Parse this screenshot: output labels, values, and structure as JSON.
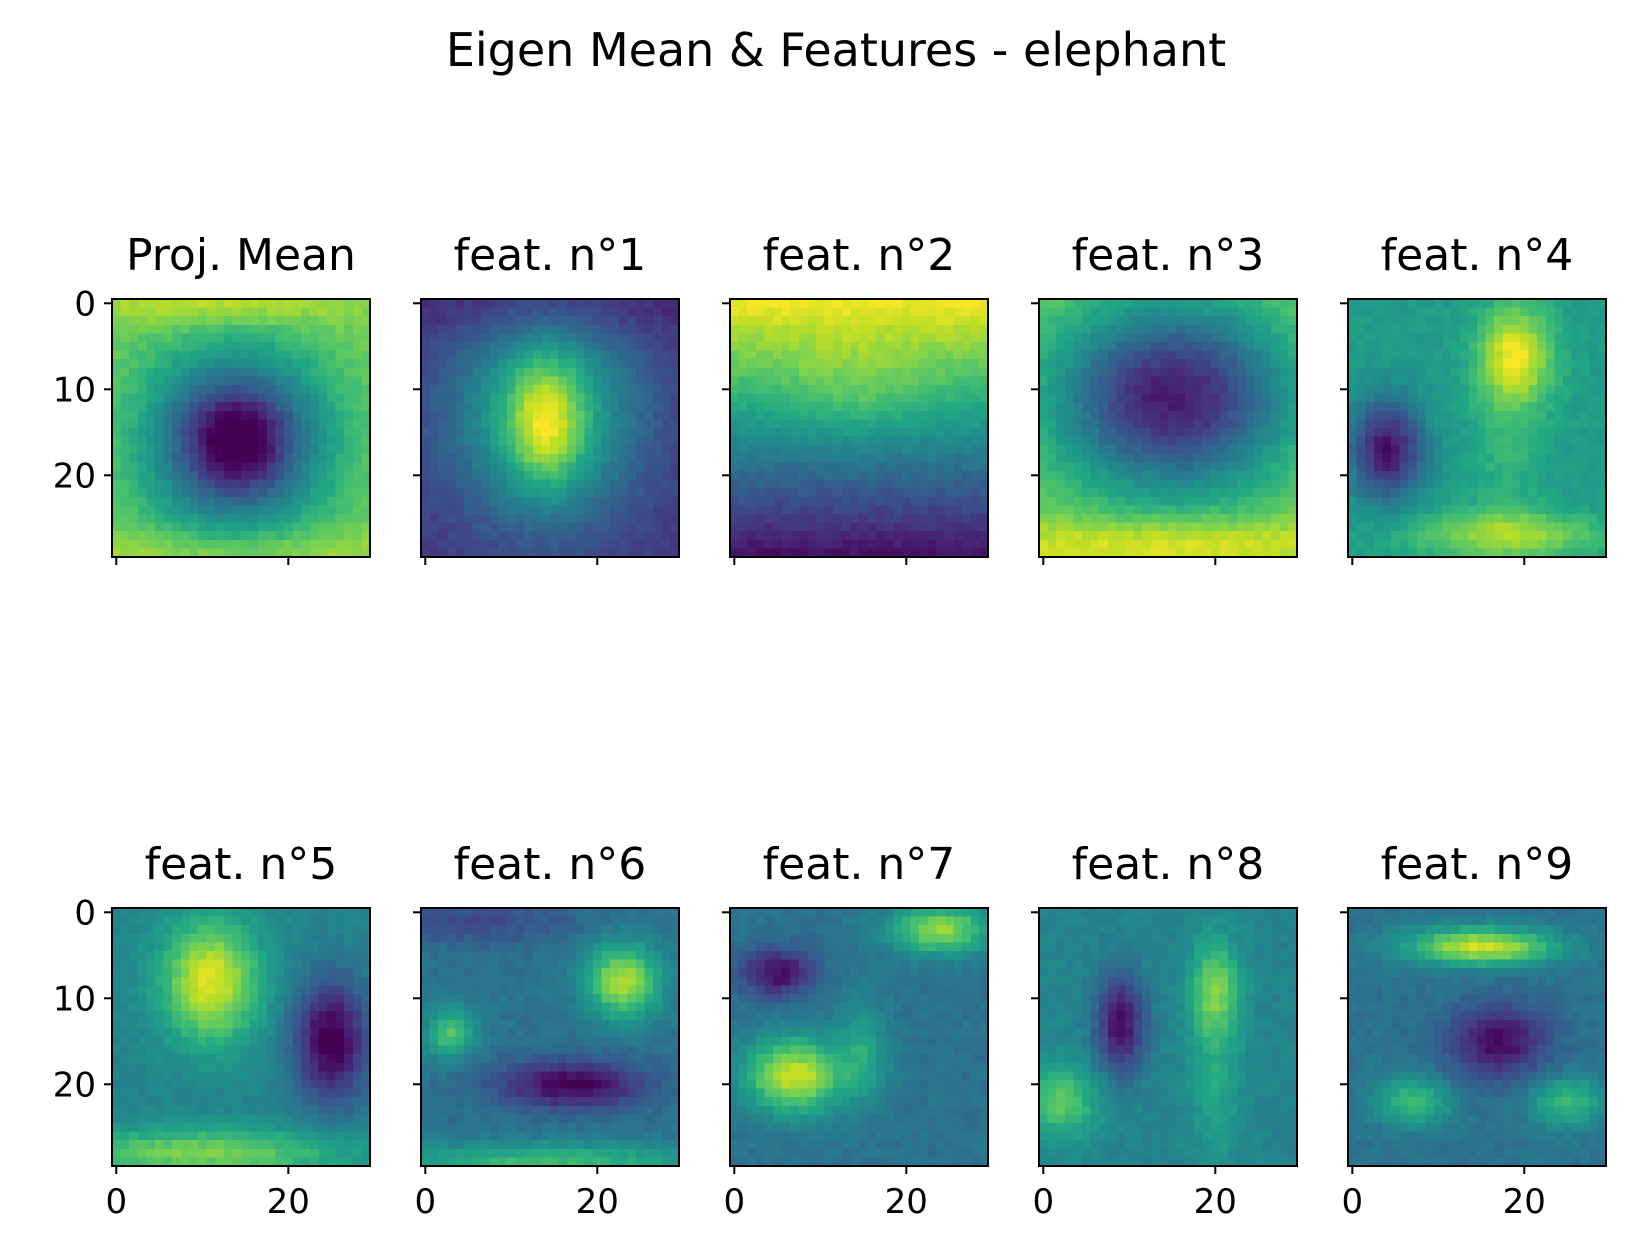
{
  "figure": {
    "suptitle": "Eigen Mean & Features - elephant",
    "colormap": "viridis"
  },
  "chart_data": [
    {
      "type": "heatmap",
      "title": "Proj. Mean",
      "pattern": "dark-center-blob",
      "grid_size": 30,
      "xticks": [
        "0",
        "20"
      ],
      "yticks": [
        "0",
        "10",
        "20"
      ],
      "x_tick_labels_shown": false,
      "y_tick_labels_shown": true
    },
    {
      "type": "heatmap",
      "title": "feat. n°1",
      "pattern": "bright-center-blob",
      "grid_size": 30,
      "xticks": [
        "0",
        "20"
      ],
      "yticks": [
        "0",
        "10",
        "20"
      ],
      "x_tick_labels_shown": false,
      "y_tick_labels_shown": false
    },
    {
      "type": "heatmap",
      "title": "feat. n°2",
      "pattern": "bright-top-dark-bottom",
      "grid_size": 30,
      "xticks": [
        "0",
        "20"
      ],
      "yticks": [
        "0",
        "10",
        "20"
      ],
      "x_tick_labels_shown": false,
      "y_tick_labels_shown": false
    },
    {
      "type": "heatmap",
      "title": "feat. n°3",
      "pattern": "bright-border-dark-center",
      "grid_size": 30,
      "xticks": [
        "0",
        "20"
      ],
      "yticks": [
        "0",
        "10",
        "20"
      ],
      "x_tick_labels_shown": false,
      "y_tick_labels_shown": false
    },
    {
      "type": "heatmap",
      "title": "feat. n°4",
      "pattern": "dark-left-bright-right",
      "grid_size": 30,
      "xticks": [
        "0",
        "20"
      ],
      "yticks": [
        "0",
        "10",
        "20"
      ],
      "x_tick_labels_shown": false,
      "y_tick_labels_shown": false
    },
    {
      "type": "heatmap",
      "title": "feat. n°5",
      "pattern": "bright-upper-left-dark-right",
      "grid_size": 30,
      "xticks": [
        "0",
        "20"
      ],
      "yticks": [
        "0",
        "10",
        "20"
      ],
      "x_tick_labels_shown": true,
      "y_tick_labels_shown": true
    },
    {
      "type": "heatmap",
      "title": "feat. n°6",
      "pattern": "face-like",
      "grid_size": 30,
      "xticks": [
        "0",
        "20"
      ],
      "yticks": [
        "0",
        "10",
        "20"
      ],
      "x_tick_labels_shown": true,
      "y_tick_labels_shown": false
    },
    {
      "type": "heatmap",
      "title": "feat. n°7",
      "pattern": "mixed-blobs",
      "grid_size": 30,
      "xticks": [
        "0",
        "20"
      ],
      "yticks": [
        "0",
        "10",
        "20"
      ],
      "x_tick_labels_shown": true,
      "y_tick_labels_shown": false
    },
    {
      "type": "heatmap",
      "title": "feat. n°8",
      "pattern": "vertical-bands",
      "grid_size": 30,
      "xticks": [
        "0",
        "20"
      ],
      "yticks": [
        "0",
        "10",
        "20"
      ],
      "x_tick_labels_shown": true,
      "y_tick_labels_shown": false
    },
    {
      "type": "heatmap",
      "title": "feat. n°9",
      "pattern": "top-band-center-dark",
      "grid_size": 30,
      "xticks": [
        "0",
        "20"
      ],
      "yticks": [
        "0",
        "10",
        "20"
      ],
      "x_tick_labels_shown": true,
      "y_tick_labels_shown": false
    }
  ]
}
